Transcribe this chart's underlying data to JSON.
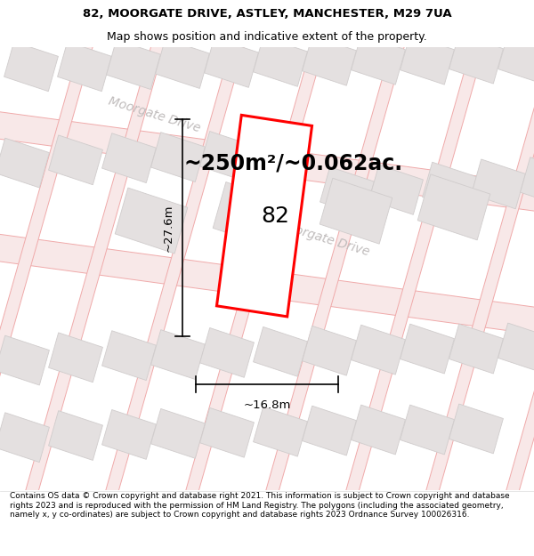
{
  "title": "82, MOORGATE DRIVE, ASTLEY, MANCHESTER, M29 7UA",
  "subtitle": "Map shows position and indicative extent of the property.",
  "area_label": "~250m²/~0.062ac.",
  "house_number": "82",
  "width_label": "~16.8m",
  "height_label": "~27.6m",
  "footer": "Contains OS data © Crown copyright and database right 2021. This information is subject to Crown copyright and database rights 2023 and is reproduced with the permission of HM Land Registry. The polygons (including the associated geometry, namely x, y co-ordinates) are subject to Crown copyright and database rights 2023 Ordnance Survey 100026316.",
  "map_bg": "#f2f0f0",
  "road_line_color": "#f0aaaa",
  "road_fill_color": "#f8e8e8",
  "building_fill": "#e4e0e0",
  "building_border": "#d0cccc",
  "highlight_fill": "#ffffff",
  "highlight_border": "#ff0000",
  "road_label_color": "#c0bcbc",
  "title_fontsize": 9.5,
  "subtitle_fontsize": 9,
  "area_fontsize": 17,
  "label_fontsize": 9.5,
  "footer_fontsize": 6.5,
  "house_fontsize": 18
}
